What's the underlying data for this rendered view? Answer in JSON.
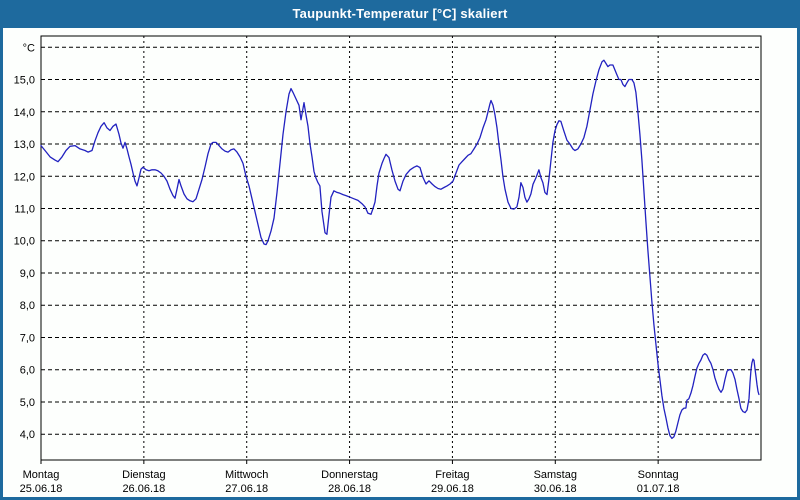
{
  "window": {
    "title": "Taupunkt-Temperatur [°C] skaliert"
  },
  "colors": {
    "frame_blue": "#1e6a9e",
    "title_text": "#ffffff",
    "plot_background": "#fdfffd",
    "axis_black": "#000000",
    "grid_black": "#000000",
    "line_blue": "#2222c0",
    "label_text": "#000000"
  },
  "chart_data": {
    "type": "line",
    "title": "Taupunkt-Temperatur [°C] skaliert",
    "y_unit_label": "°C",
    "grid": "dashed",
    "legend": "none",
    "xlim_days": [
      0,
      7
    ],
    "ylim": [
      3.2,
      16.35
    ],
    "y_grid_values": [
      4,
      5,
      6,
      7,
      8,
      9,
      10,
      11,
      12,
      13,
      14,
      15,
      16
    ],
    "y_ticks": [
      {
        "value": 15,
        "label": "15,0"
      },
      {
        "value": 14,
        "label": "14,0"
      },
      {
        "value": 13,
        "label": "13,0"
      },
      {
        "value": 12,
        "label": "12,0"
      },
      {
        "value": 11,
        "label": "11,0"
      },
      {
        "value": 10,
        "label": "10,0"
      },
      {
        "value": 9,
        "label": "9,0"
      },
      {
        "value": 8,
        "label": "8,0"
      },
      {
        "value": 7,
        "label": "7,0"
      },
      {
        "value": 6,
        "label": "6,0"
      },
      {
        "value": 5,
        "label": "5,0"
      },
      {
        "value": 4,
        "label": "4,0"
      }
    ],
    "x_days": [
      {
        "name": "Montag",
        "date": "25.06.18"
      },
      {
        "name": "Dienstag",
        "date": "26.06.18"
      },
      {
        "name": "Mittwoch",
        "date": "27.06.18"
      },
      {
        "name": "Donnerstag",
        "date": "28.06.18"
      },
      {
        "name": "Freitag",
        "date": "29.06.18"
      },
      {
        "name": "Samstag",
        "date": "30.06.18"
      },
      {
        "name": "Sonntag",
        "date": "01.07.18"
      }
    ],
    "series": [
      {
        "name": "Taupunkt-Temperatur",
        "color": "#2222c0",
        "points": [
          [
            0.0,
            12.95
          ],
          [
            0.039,
            12.8
          ],
          [
            0.088,
            12.6
          ],
          [
            0.136,
            12.5
          ],
          [
            0.165,
            12.45
          ],
          [
            0.204,
            12.6
          ],
          [
            0.243,
            12.8
          ],
          [
            0.282,
            12.93
          ],
          [
            0.331,
            12.95
          ],
          [
            0.379,
            12.85
          ],
          [
            0.428,
            12.8
          ],
          [
            0.457,
            12.75
          ],
          [
            0.496,
            12.8
          ],
          [
            0.525,
            13.1
          ],
          [
            0.554,
            13.35
          ],
          [
            0.583,
            13.55
          ],
          [
            0.613,
            13.66
          ],
          [
            0.642,
            13.5
          ],
          [
            0.671,
            13.42
          ],
          [
            0.7,
            13.55
          ],
          [
            0.729,
            13.62
          ],
          [
            0.758,
            13.3
          ],
          [
            0.778,
            13.03
          ],
          [
            0.797,
            12.87
          ],
          [
            0.817,
            13.05
          ],
          [
            0.836,
            12.85
          ],
          [
            0.856,
            12.6
          ],
          [
            0.875,
            12.37
          ],
          [
            0.894,
            12.1
          ],
          [
            0.914,
            11.85
          ],
          [
            0.933,
            11.7
          ],
          [
            0.953,
            11.95
          ],
          [
            0.972,
            12.22
          ],
          [
            0.992,
            12.28
          ],
          [
            1.021,
            12.2
          ],
          [
            1.05,
            12.17
          ],
          [
            1.079,
            12.2
          ],
          [
            1.108,
            12.2
          ],
          [
            1.137,
            12.17
          ],
          [
            1.167,
            12.1
          ],
          [
            1.196,
            12.0
          ],
          [
            1.225,
            11.85
          ],
          [
            1.254,
            11.6
          ],
          [
            1.283,
            11.4
          ],
          [
            1.303,
            11.32
          ],
          [
            1.322,
            11.6
          ],
          [
            1.342,
            11.9
          ],
          [
            1.361,
            11.7
          ],
          [
            1.39,
            11.45
          ],
          [
            1.419,
            11.3
          ],
          [
            1.449,
            11.24
          ],
          [
            1.478,
            11.21
          ],
          [
            1.507,
            11.3
          ],
          [
            1.536,
            11.6
          ],
          [
            1.565,
            11.9
          ],
          [
            1.595,
            12.3
          ],
          [
            1.624,
            12.7
          ],
          [
            1.653,
            13.0
          ],
          [
            1.672,
            13.05
          ],
          [
            1.702,
            13.05
          ],
          [
            1.731,
            12.95
          ],
          [
            1.76,
            12.85
          ],
          [
            1.789,
            12.78
          ],
          [
            1.818,
            12.75
          ],
          [
            1.847,
            12.82
          ],
          [
            1.876,
            12.85
          ],
          [
            1.906,
            12.75
          ],
          [
            1.935,
            12.6
          ],
          [
            1.964,
            12.4
          ],
          [
            1.993,
            12.0
          ],
          [
            2.022,
            11.7
          ],
          [
            2.051,
            11.3
          ],
          [
            2.081,
            10.9
          ],
          [
            2.11,
            10.5
          ],
          [
            2.139,
            10.1
          ],
          [
            2.168,
            9.9
          ],
          [
            2.188,
            9.88
          ],
          [
            2.207,
            10.0
          ],
          [
            2.236,
            10.3
          ],
          [
            2.265,
            10.7
          ],
          [
            2.294,
            11.5
          ],
          [
            2.324,
            12.4
          ],
          [
            2.353,
            13.3
          ],
          [
            2.382,
            14.0
          ],
          [
            2.411,
            14.55
          ],
          [
            2.431,
            14.72
          ],
          [
            2.45,
            14.6
          ],
          [
            2.479,
            14.4
          ],
          [
            2.508,
            14.2
          ],
          [
            2.528,
            13.75
          ],
          [
            2.557,
            14.28
          ],
          [
            2.576,
            13.9
          ],
          [
            2.596,
            13.55
          ],
          [
            2.615,
            13.0
          ],
          [
            2.635,
            12.6
          ],
          [
            2.654,
            12.15
          ],
          [
            2.673,
            11.95
          ],
          [
            2.693,
            11.8
          ],
          [
            2.712,
            11.7
          ],
          [
            2.732,
            10.9
          ],
          [
            2.761,
            10.25
          ],
          [
            2.78,
            10.2
          ],
          [
            2.8,
            10.8
          ],
          [
            2.819,
            11.35
          ],
          [
            2.848,
            11.55
          ],
          [
            2.878,
            11.5
          ],
          [
            2.907,
            11.47
          ],
          [
            2.936,
            11.43
          ],
          [
            2.965,
            11.4
          ],
          [
            3.004,
            11.35
          ],
          [
            3.043,
            11.3
          ],
          [
            3.082,
            11.25
          ],
          [
            3.121,
            11.15
          ],
          [
            3.15,
            11.05
          ],
          [
            3.179,
            10.85
          ],
          [
            3.208,
            10.82
          ],
          [
            3.228,
            11.0
          ],
          [
            3.247,
            11.2
          ],
          [
            3.267,
            11.7
          ],
          [
            3.286,
            12.1
          ],
          [
            3.315,
            12.4
          ],
          [
            3.335,
            12.55
          ],
          [
            3.354,
            12.68
          ],
          [
            3.383,
            12.58
          ],
          [
            3.412,
            12.2
          ],
          [
            3.442,
            11.85
          ],
          [
            3.471,
            11.6
          ],
          [
            3.49,
            11.55
          ],
          [
            3.519,
            11.85
          ],
          [
            3.549,
            12.05
          ],
          [
            3.588,
            12.2
          ],
          [
            3.627,
            12.28
          ],
          [
            3.656,
            12.32
          ],
          [
            3.685,
            12.27
          ],
          [
            3.714,
            11.96
          ],
          [
            3.743,
            11.76
          ],
          [
            3.772,
            11.86
          ],
          [
            3.802,
            11.76
          ],
          [
            3.831,
            11.68
          ],
          [
            3.86,
            11.62
          ],
          [
            3.889,
            11.6
          ],
          [
            3.918,
            11.65
          ],
          [
            3.947,
            11.7
          ],
          [
            3.976,
            11.76
          ],
          [
            4.006,
            11.85
          ],
          [
            4.035,
            12.1
          ],
          [
            4.064,
            12.35
          ],
          [
            4.093,
            12.45
          ],
          [
            4.122,
            12.55
          ],
          [
            4.151,
            12.65
          ],
          [
            4.18,
            12.7
          ],
          [
            4.21,
            12.85
          ],
          [
            4.239,
            13.0
          ],
          [
            4.268,
            13.2
          ],
          [
            4.297,
            13.5
          ],
          [
            4.326,
            13.75
          ],
          [
            4.346,
            14.0
          ],
          [
            4.365,
            14.25
          ],
          [
            4.375,
            14.35
          ],
          [
            4.394,
            14.2
          ],
          [
            4.414,
            13.9
          ],
          [
            4.433,
            13.5
          ],
          [
            4.452,
            13.0
          ],
          [
            4.472,
            12.5
          ],
          [
            4.491,
            12.0
          ],
          [
            4.511,
            11.6
          ],
          [
            4.54,
            11.2
          ],
          [
            4.569,
            11.0
          ],
          [
            4.598,
            10.98
          ],
          [
            4.627,
            11.05
          ],
          [
            4.647,
            11.35
          ],
          [
            4.666,
            11.8
          ],
          [
            4.686,
            11.65
          ],
          [
            4.705,
            11.35
          ],
          [
            4.724,
            11.2
          ],
          [
            4.744,
            11.3
          ],
          [
            4.763,
            11.45
          ],
          [
            4.783,
            11.75
          ],
          [
            4.812,
            11.95
          ],
          [
            4.841,
            12.2
          ],
          [
            4.861,
            11.95
          ],
          [
            4.88,
            11.8
          ],
          [
            4.899,
            11.5
          ],
          [
            4.919,
            11.43
          ],
          [
            4.938,
            11.9
          ],
          [
            4.958,
            12.5
          ],
          [
            4.977,
            13.05
          ],
          [
            4.996,
            13.4
          ],
          [
            5.016,
            13.6
          ],
          [
            5.035,
            13.72
          ],
          [
            5.055,
            13.7
          ],
          [
            5.084,
            13.4
          ],
          [
            5.113,
            13.12
          ],
          [
            5.142,
            13.0
          ],
          [
            5.171,
            12.85
          ],
          [
            5.191,
            12.8
          ],
          [
            5.22,
            12.85
          ],
          [
            5.249,
            13.0
          ],
          [
            5.278,
            13.2
          ],
          [
            5.307,
            13.55
          ],
          [
            5.337,
            14.05
          ],
          [
            5.366,
            14.55
          ],
          [
            5.395,
            14.95
          ],
          [
            5.424,
            15.3
          ],
          [
            5.454,
            15.55
          ],
          [
            5.473,
            15.6
          ],
          [
            5.492,
            15.5
          ],
          [
            5.512,
            15.4
          ],
          [
            5.531,
            15.45
          ],
          [
            5.56,
            15.45
          ],
          [
            5.58,
            15.3
          ],
          [
            5.599,
            15.15
          ],
          [
            5.618,
            15.0
          ],
          [
            5.638,
            15.0
          ],
          [
            5.657,
            14.85
          ],
          [
            5.677,
            14.78
          ],
          [
            5.696,
            14.9
          ],
          [
            5.716,
            15.0
          ],
          [
            5.745,
            15.0
          ],
          [
            5.764,
            14.9
          ],
          [
            5.784,
            14.6
          ],
          [
            5.803,
            14.0
          ],
          [
            5.823,
            13.3
          ],
          [
            5.842,
            12.5
          ],
          [
            5.861,
            11.6
          ],
          [
            5.881,
            10.6
          ],
          [
            5.9,
            9.7
          ],
          [
            5.92,
            8.9
          ],
          [
            5.939,
            8.1
          ],
          [
            5.959,
            7.4
          ],
          [
            5.978,
            6.8
          ],
          [
            5.998,
            6.2
          ],
          [
            6.017,
            5.7
          ],
          [
            6.037,
            5.2
          ],
          [
            6.056,
            4.8
          ],
          [
            6.076,
            4.5
          ],
          [
            6.095,
            4.2
          ],
          [
            6.115,
            3.95
          ],
          [
            6.134,
            3.87
          ],
          [
            6.153,
            3.92
          ],
          [
            6.173,
            4.1
          ],
          [
            6.192,
            4.35
          ],
          [
            6.212,
            4.6
          ],
          [
            6.231,
            4.75
          ],
          [
            6.251,
            4.81
          ],
          [
            6.27,
            4.81
          ],
          [
            6.28,
            5.05
          ],
          [
            6.299,
            5.1
          ],
          [
            6.319,
            5.28
          ],
          [
            6.338,
            5.5
          ],
          [
            6.358,
            5.8
          ],
          [
            6.377,
            6.05
          ],
          [
            6.397,
            6.2
          ],
          [
            6.416,
            6.3
          ],
          [
            6.435,
            6.45
          ],
          [
            6.455,
            6.5
          ],
          [
            6.474,
            6.45
          ],
          [
            6.494,
            6.3
          ],
          [
            6.513,
            6.2
          ],
          [
            6.533,
            6.0
          ],
          [
            6.552,
            5.75
          ],
          [
            6.572,
            5.55
          ],
          [
            6.591,
            5.4
          ],
          [
            6.611,
            5.3
          ],
          [
            6.63,
            5.4
          ],
          [
            6.65,
            5.7
          ],
          [
            6.669,
            5.95
          ],
          [
            6.689,
            6.0
          ],
          [
            6.708,
            6.0
          ],
          [
            6.727,
            5.9
          ],
          [
            6.747,
            5.7
          ],
          [
            6.766,
            5.4
          ],
          [
            6.786,
            5.1
          ],
          [
            6.805,
            4.8
          ],
          [
            6.825,
            4.7
          ],
          [
            6.844,
            4.67
          ],
          [
            6.864,
            4.75
          ],
          [
            6.883,
            5.1
          ],
          [
            6.893,
            5.6
          ],
          [
            6.903,
            6.0
          ],
          [
            6.912,
            6.21
          ],
          [
            6.922,
            6.33
          ],
          [
            6.932,
            6.29
          ],
          [
            6.941,
            6.05
          ],
          [
            6.951,
            5.79
          ],
          [
            6.961,
            5.54
          ],
          [
            6.971,
            5.33
          ],
          [
            6.98,
            5.23
          ]
        ]
      }
    ]
  }
}
